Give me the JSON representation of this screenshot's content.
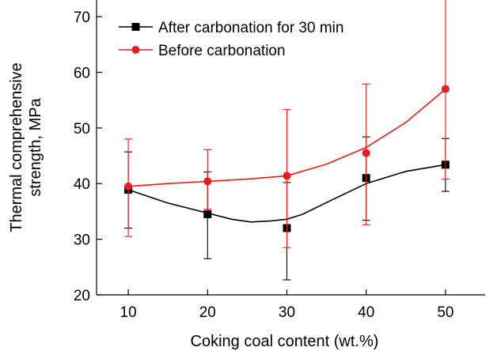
{
  "chart_data": {
    "type": "line",
    "title": "",
    "xlabel": "Coking coal content (wt.%)",
    "ylabel_lines": [
      "Thermal comprehensive",
      "strength, MPa"
    ],
    "xlim": [
      5,
      55
    ],
    "ylim": [
      20,
      73
    ],
    "xticks": [
      10,
      20,
      30,
      40,
      50
    ],
    "yticks": [
      20,
      30,
      40,
      50,
      60,
      70
    ],
    "grid": false,
    "legend_position": "top-left",
    "series": [
      {
        "name": "After carbonation for 30 min",
        "color": "#000000",
        "marker": "square",
        "x": [
          10,
          20,
          30,
          40,
          50
        ],
        "y": [
          38.9,
          34.5,
          32.0,
          41.0,
          43.4
        ],
        "error_low": [
          32.0,
          26.5,
          22.7,
          33.4,
          38.6
        ],
        "error_high": [
          45.7,
          42.1,
          40.2,
          48.4,
          48.1
        ],
        "curve": [
          [
            10,
            38.9
          ],
          [
            15,
            36.5
          ],
          [
            20,
            34.7
          ],
          [
            23,
            33.6
          ],
          [
            25.5,
            33.1
          ],
          [
            28,
            33.3
          ],
          [
            30,
            33.6
          ],
          [
            32,
            34.5
          ],
          [
            35,
            36.6
          ],
          [
            40,
            40.0
          ],
          [
            45,
            42.2
          ],
          [
            50,
            43.4
          ]
        ]
      },
      {
        "name": "Before carbonation",
        "color": "#e41e1e",
        "marker": "circle",
        "x": [
          10,
          20,
          30,
          40,
          50
        ],
        "y": [
          39.5,
          40.4,
          41.4,
          45.5,
          57.0
        ],
        "error_low": [
          30.5,
          35.4,
          28.5,
          32.6,
          40.8
        ],
        "error_high": [
          48.0,
          46.1,
          53.3,
          57.9,
          73.0
        ],
        "curve": [
          [
            10,
            39.5
          ],
          [
            15,
            40.0
          ],
          [
            20,
            40.4
          ],
          [
            25,
            40.8
          ],
          [
            30,
            41.4
          ],
          [
            35,
            43.5
          ],
          [
            40,
            46.5
          ],
          [
            45,
            51.0
          ],
          [
            50,
            57.0
          ]
        ]
      }
    ]
  }
}
